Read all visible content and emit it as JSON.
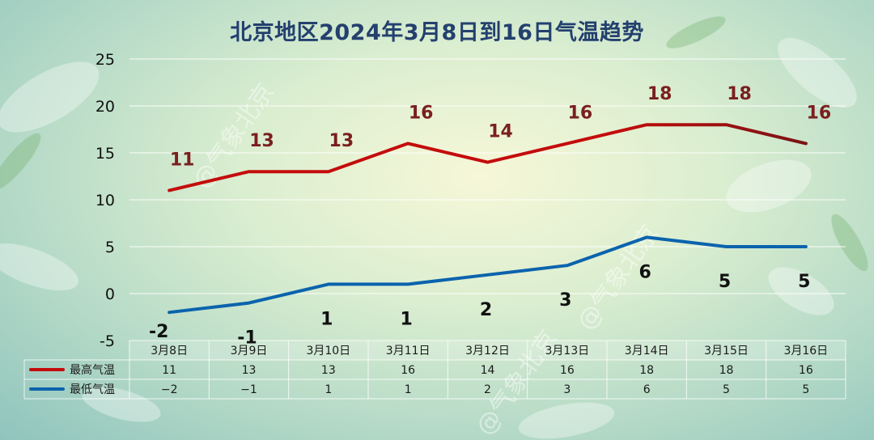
{
  "title": "北京地区2024年3月8日到16日气温趋势",
  "watermark": "@气象北京",
  "colors": {
    "high": "#c40c0c",
    "high_end": "#7a1414",
    "low": "#0a63ad",
    "high_label": "#7a1f1f",
    "low_label": "#111111"
  },
  "chart_data": {
    "type": "line",
    "title": "北京地区2024年3月8日到16日气温趋势",
    "categories": [
      "3月8日",
      "3月9日",
      "3月10日",
      "3月11日",
      "3月12日",
      "3月13日",
      "3月14日",
      "3月15日",
      "3月16日"
    ],
    "series": [
      {
        "name": "最高气温",
        "values": [
          11,
          13,
          13,
          16,
          14,
          16,
          18,
          18,
          16
        ]
      },
      {
        "name": "最低气温",
        "values": [
          -2,
          -1,
          1,
          1,
          2,
          3,
          6,
          5,
          5
        ]
      }
    ],
    "y_ticks": [
      -5,
      0,
      5,
      10,
      15,
      20,
      25
    ],
    "ylim": [
      -5,
      25
    ],
    "grid": true,
    "legend": "data-table-bottom"
  }
}
